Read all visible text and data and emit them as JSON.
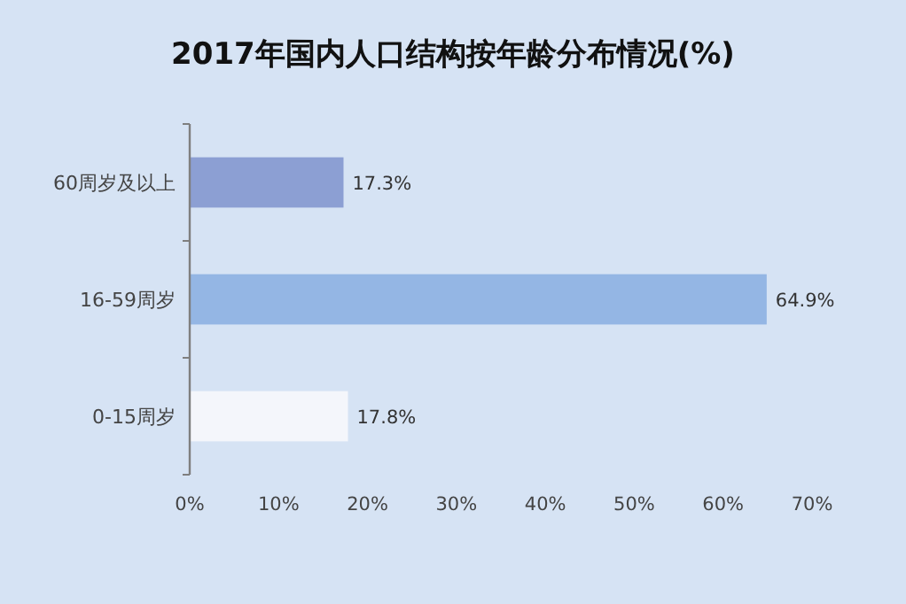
{
  "chart_data": {
    "type": "bar",
    "orientation": "horizontal",
    "title": "2017年国内人口结构按年龄分布情况(%)",
    "categories": [
      "60周岁及以上",
      "16-59周岁",
      "0-15周岁"
    ],
    "values": [
      17.3,
      64.9,
      17.8
    ],
    "colors": [
      "#8c9fd3",
      "#94b6e4",
      "#f4f6fb"
    ],
    "value_labels": [
      "17.3%",
      "64.9%",
      "17.8%"
    ],
    "xlim": [
      0,
      70
    ],
    "xticks": [
      {
        "value": 0,
        "label": "0%"
      },
      {
        "value": 10,
        "label": "10%"
      },
      {
        "value": 20,
        "label": "20%"
      },
      {
        "value": 30,
        "label": "30%"
      },
      {
        "value": 40,
        "label": "40%"
      },
      {
        "value": 50,
        "label": "50%"
      },
      {
        "value": 60,
        "label": "60%"
      },
      {
        "value": 70,
        "label": "70%"
      }
    ]
  }
}
